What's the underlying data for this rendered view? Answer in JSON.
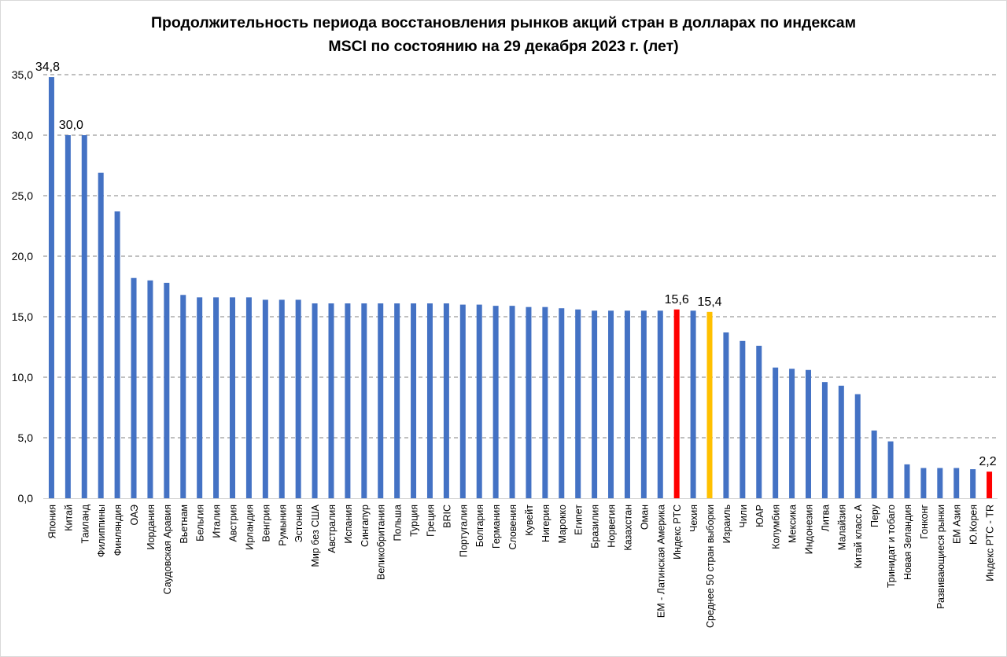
{
  "chart_data": {
    "type": "bar",
    "title_line1": "Продолжительность периода восстановления рынков акций стран в долларах по индексам",
    "title_line2": "MSCI по состоянию на 29 декабря 2023 г. (лет)",
    "xlabel": "",
    "ylabel": "",
    "ylim": [
      0,
      35
    ],
    "yticks": [
      "0,0",
      "5,0",
      "10,0",
      "15,0",
      "20,0",
      "25,0",
      "30,0",
      "35,0"
    ],
    "grid": true,
    "colors": {
      "default": "#4472c4",
      "rts": "#ff0000",
      "average": "#ffc000",
      "grid": "#808080"
    },
    "categories": [
      "Япония",
      "Китай",
      "Таиланд",
      "Филиппины",
      "Финляндия",
      "ОАЭ",
      "Иордания",
      "Саудовская Аравия",
      "Вьетнам",
      "Бельгия",
      "Италия",
      "Австрия",
      "Ирландия",
      "Венгрия",
      "Румыния",
      "Эстония",
      "Мир без США",
      "Австралия",
      "Испания",
      "Сингапур",
      "Великобритания",
      "Польша",
      "Турция",
      "Греция",
      "BRIC",
      "Португалия",
      "Болгария",
      "Германия",
      "Словения",
      "Кувейт",
      "Нигерия",
      "Марокко",
      "Египет",
      "Бразилия",
      "Норвегия",
      "Казахстан",
      "Оман",
      "ЕМ - Латинская Америка",
      "Индекс РТС",
      "Чехия",
      "Среднее 50 стран выборки",
      "Израиль",
      "Чили",
      "ЮАР",
      "Колумбия",
      "Мексика",
      "Индонезия",
      "Литва",
      "Малайзия",
      "Китай класс А",
      "Перу",
      "Тринидат и тобаго",
      "Новая Зеландия",
      "Гонконг",
      "Развивающиеся рынки",
      "ЕМ Азия",
      "Ю.Корея",
      "Индекс РТС - TR"
    ],
    "values": [
      34.8,
      30.0,
      30.0,
      26.9,
      23.7,
      18.2,
      18.0,
      17.8,
      16.8,
      16.6,
      16.6,
      16.6,
      16.6,
      16.4,
      16.4,
      16.4,
      16.1,
      16.1,
      16.1,
      16.1,
      16.1,
      16.1,
      16.1,
      16.1,
      16.1,
      16.0,
      16.0,
      15.9,
      15.9,
      15.8,
      15.8,
      15.7,
      15.6,
      15.5,
      15.5,
      15.5,
      15.5,
      15.5,
      15.6,
      15.5,
      15.4,
      13.7,
      13.0,
      12.6,
      10.8,
      10.7,
      10.6,
      9.6,
      9.3,
      8.6,
      5.6,
      4.7,
      2.8,
      2.5,
      2.5,
      2.5,
      2.4,
      2.2
    ],
    "bar_colors": [
      "default",
      "default",
      "default",
      "default",
      "default",
      "default",
      "default",
      "default",
      "default",
      "default",
      "default",
      "default",
      "default",
      "default",
      "default",
      "default",
      "default",
      "default",
      "default",
      "default",
      "default",
      "default",
      "default",
      "default",
      "default",
      "default",
      "default",
      "default",
      "default",
      "default",
      "default",
      "default",
      "default",
      "default",
      "default",
      "default",
      "default",
      "default",
      "rts",
      "default",
      "average",
      "default",
      "default",
      "default",
      "default",
      "default",
      "default",
      "default",
      "default",
      "default",
      "default",
      "default",
      "default",
      "default",
      "default",
      "default",
      "default",
      "rts"
    ],
    "data_labels": [
      {
        "index": 0,
        "text": "34,8"
      },
      {
        "index": 1,
        "text": "30,0"
      },
      {
        "index": 38,
        "text": "15,6"
      },
      {
        "index": 40,
        "text": "15,4"
      },
      {
        "index": 57,
        "text": "2,2"
      }
    ]
  }
}
